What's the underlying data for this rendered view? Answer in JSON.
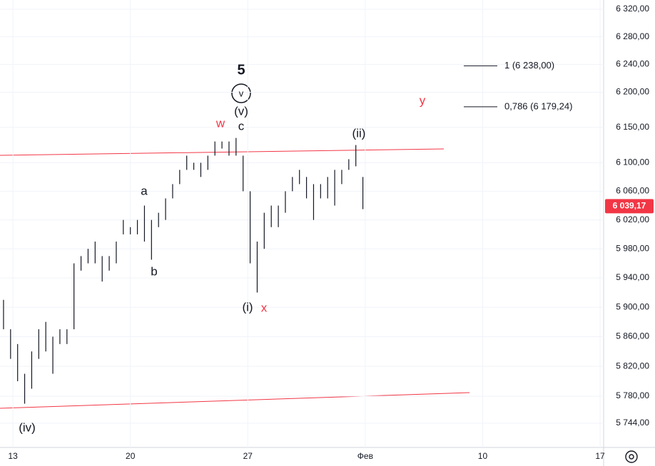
{
  "chart_data": {
    "type": "range_bar",
    "log_scale": true,
    "grid": true,
    "color": "#131722",
    "x": [
      -0.4,
      -0.1,
      0.2,
      0.5,
      0.8,
      1.1,
      1.4,
      1.7,
      2.0,
      2.3,
      2.6,
      2.9,
      3.2,
      3.5,
      3.8,
      4.1,
      4.4,
      4.7,
      5.0,
      5.3,
      5.6,
      5.9,
      6.2,
      6.5,
      6.8,
      7.1,
      7.4,
      7.7,
      8.0,
      8.3,
      8.6,
      8.9,
      9.2,
      9.5,
      9.8,
      10.1,
      10.4,
      10.7,
      11.0,
      11.3,
      11.6,
      11.9,
      12.2,
      12.5,
      12.8,
      13.1,
      13.4,
      13.7,
      14.0,
      14.3,
      14.6,
      14.9
    ],
    "high": [
      5910,
      5870,
      5850,
      5810,
      5840,
      5870,
      5880,
      5860,
      5870,
      5870,
      5960,
      5970,
      5980,
      5990,
      5970,
      5970,
      5990,
      6020,
      6010,
      6020,
      6040,
      6020,
      6030,
      6050,
      6070,
      6090,
      6110,
      6100,
      6100,
      6110,
      6130,
      6130,
      6130,
      6135,
      6110,
      6060,
      5990,
      6030,
      6040,
      6040,
      6060,
      6080,
      6090,
      6080,
      6070,
      6070,
      6080,
      6090,
      6090,
      6105,
      6125,
      6080
    ],
    "low": [
      5870,
      5830,
      5800,
      5770,
      5790,
      5830,
      5840,
      5810,
      5850,
      5850,
      5870,
      5950,
      5960,
      5960,
      5935,
      5950,
      5960,
      6000,
      6000,
      6000,
      5990,
      5965,
      6010,
      6020,
      6050,
      6070,
      6090,
      6090,
      6080,
      6090,
      6110,
      6120,
      6110,
      6110,
      6060,
      5960,
      5920,
      5980,
      6010,
      6010,
      6030,
      6060,
      6070,
      6050,
      6020,
      6050,
      6050,
      6040,
      6070,
      6090,
      6095,
      6035
    ],
    "xlim": [
      -0.55,
      25.15
    ],
    "xticks": [
      {
        "value": 0,
        "label": "13"
      },
      {
        "value": 5,
        "label": "20"
      },
      {
        "value": 10,
        "label": "27"
      },
      {
        "value": 15,
        "label": "Фев"
      },
      {
        "value": 20,
        "label": "10"
      },
      {
        "value": 25,
        "label": "17"
      }
    ],
    "ylim": [
      5712,
      6333.5
    ],
    "yticks": [
      {
        "value": 6320,
        "label": "6 320,00"
      },
      {
        "value": 6280,
        "label": "6 280,00"
      },
      {
        "value": 6240,
        "label": "6 240,00"
      },
      {
        "value": 6200,
        "label": "6 200,00"
      },
      {
        "value": 6150,
        "label": "6 150,00"
      },
      {
        "value": 6100,
        "label": "6 100,00"
      },
      {
        "value": 6060,
        "label": "6 060,00"
      },
      {
        "value": 6020,
        "label": "6 020,00"
      },
      {
        "value": 5980,
        "label": "5 980,00"
      },
      {
        "value": 5940,
        "label": "5 940,00"
      },
      {
        "value": 5900,
        "label": "5 900,00"
      },
      {
        "value": 5860,
        "label": "5 860,00"
      },
      {
        "value": 5820,
        "label": "5 820,00"
      },
      {
        "value": 5780,
        "label": "5 780,00"
      },
      {
        "value": 5744,
        "label": "5 744,00"
      }
    ],
    "last_price": {
      "value": 6039.17,
      "label": "6 039,17",
      "color": "#f23645"
    },
    "fib_levels": [
      {
        "value": 6238,
        "label": "1 (6 238,00)"
      },
      {
        "value": 6179.24,
        "label": "0,786 (6 179,24)"
      }
    ],
    "annotations": [
      {
        "text": "5",
        "color": "#131722"
      },
      {
        "text": "v",
        "color": "#131722"
      },
      {
        "text": "(v)",
        "color": "#131722"
      },
      {
        "text": "c",
        "color": "#131722"
      },
      {
        "text": "w",
        "color": "#f23645"
      },
      {
        "text": "(ii)",
        "color": "#131722"
      },
      {
        "text": "y",
        "color": "#f23645"
      },
      {
        "text": "a",
        "color": "#131722"
      },
      {
        "text": "b",
        "color": "#131722"
      },
      {
        "text": "(i)",
        "color": "#131722"
      },
      {
        "text": "x",
        "color": "#f23645"
      },
      {
        "text": "(iv)",
        "color": "#131722"
      }
    ]
  }
}
